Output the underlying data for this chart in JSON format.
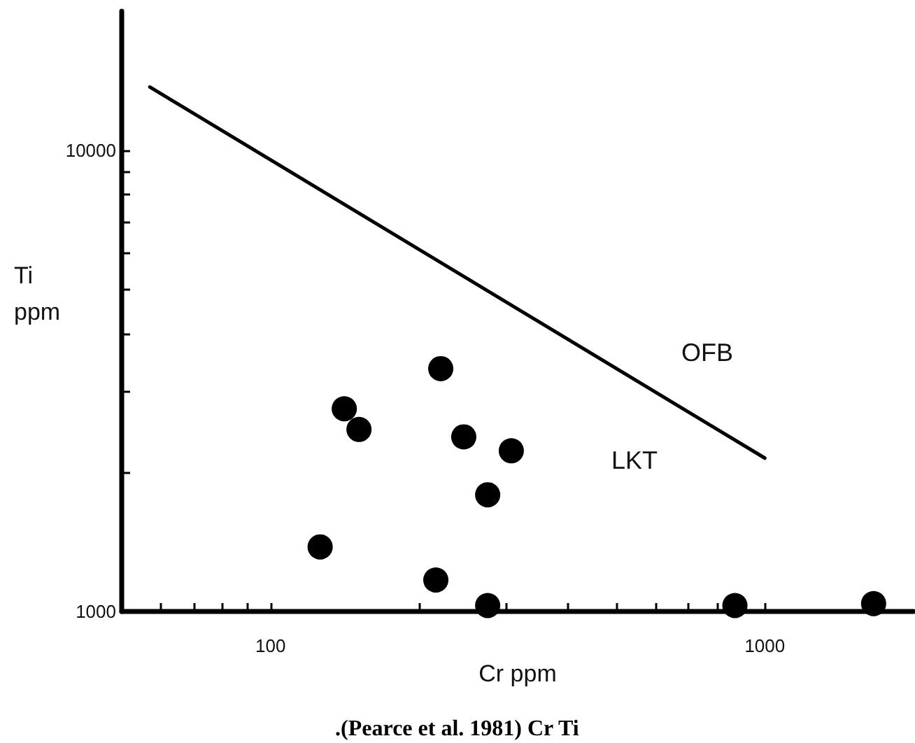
{
  "chart_data": {
    "type": "scatter",
    "xlabel": "Cr ppm",
    "ylabel": "Ti ppm",
    "log": "xy",
    "marker": "circle",
    "xlim": [
      50,
      2000
    ],
    "ylim": [
      1000,
      20000
    ],
    "xticks": [
      {
        "value": 60,
        "label": null
      },
      {
        "value": 70,
        "label": null
      },
      {
        "value": 80,
        "label": null
      },
      {
        "value": 90,
        "label": null
      },
      100,
      {
        "value": 200,
        "label": null
      },
      {
        "value": 300,
        "label": null
      },
      {
        "value": 400,
        "label": null
      },
      {
        "value": 500,
        "label": null
      },
      {
        "value": 600,
        "label": null
      },
      {
        "value": 700,
        "label": null
      },
      {
        "value": 800,
        "label": null
      },
      {
        "value": 900,
        "label": null
      },
      1000
    ],
    "yticks": [
      1000,
      {
        "value": 2000,
        "label": null
      },
      {
        "value": 3000,
        "label": null
      },
      {
        "value": 4000,
        "label": null
      },
      {
        "value": 5000,
        "label": null
      },
      {
        "value": 6000,
        "label": null
      },
      {
        "value": 7000,
        "label": null
      },
      {
        "value": 8000,
        "label": null
      },
      {
        "value": 9000,
        "label": null
      },
      10000
    ],
    "series": [
      {
        "color": "#000000",
        "x": [
          221,
          141,
          151,
          246,
          307,
          275,
          126,
          216,
          275,
          870,
          1660
        ],
        "values": [
          3360,
          2750,
          2480,
          2390,
          2230,
          1790,
          1380,
          1170,
          1030,
          1030,
          1040
        ]
      },
      {
        "type": "line",
        "color": "#000000",
        "marker": "none",
        "x": [
          57,
          1000
        ],
        "values": [
          13700,
          2150
        ]
      }
    ],
    "annotations": [
      "OFB",
      "LKT",
      ".(Pearce et al. 1981) Cr Ti"
    ]
  }
}
